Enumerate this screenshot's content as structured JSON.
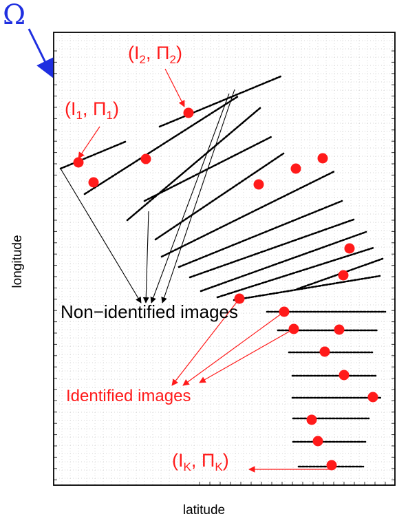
{
  "figure": {
    "omega_label": "Ω",
    "axis_x_label": "latitude",
    "axis_y_label": "longitude",
    "pair_first": {
      "letter": "I",
      "sub1": "1",
      "pi": "Π",
      "sub2": "1"
    },
    "pair_second": {
      "letter": "I",
      "sub1": "2",
      "pi": "Π",
      "sub2": "2"
    },
    "pair_last": {
      "letter": "I",
      "sub1": "K",
      "pi": "Π",
      "sub2": "K"
    },
    "non_identified_label": "Non−identified images",
    "identified_label": "Identified images"
  },
  "colors": {
    "identified": "#ff1a1a",
    "non_identified": "#000000",
    "omega": "#1f2fe0",
    "grid": "#c8c8c8"
  }
}
